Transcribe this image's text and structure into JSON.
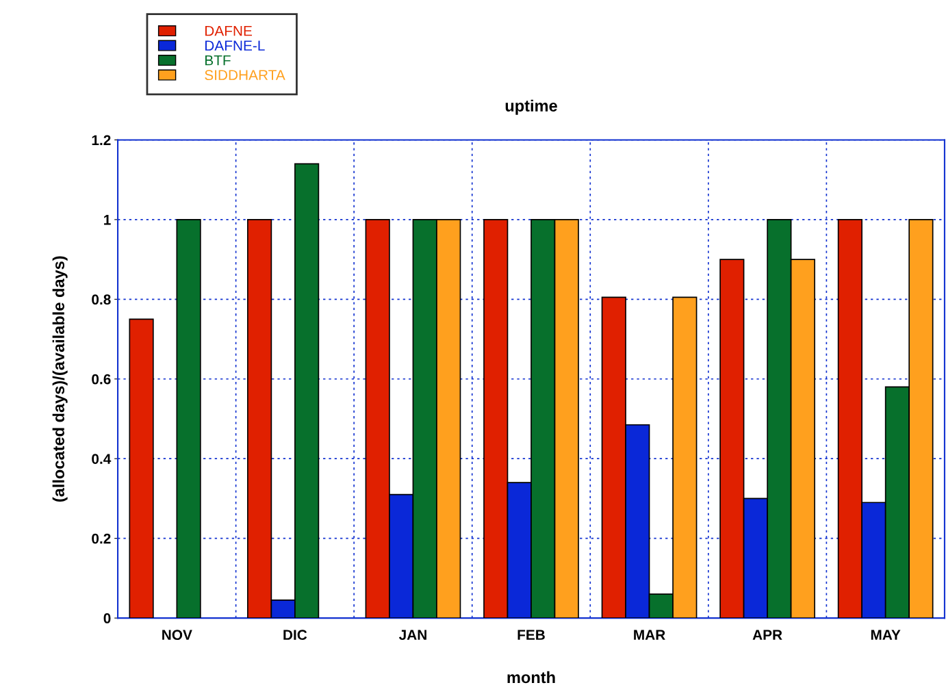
{
  "chart_data": {
    "type": "bar",
    "title": "uptime",
    "xlabel": "month",
    "ylabel": "(allocated days)/(available days)",
    "categories": [
      "NOV",
      "DIC",
      "JAN",
      "FEB",
      "MAR",
      "APR",
      "MAY"
    ],
    "series": [
      {
        "name": "DAFNE",
        "color": "#e02000",
        "values": [
          0.75,
          1,
          1,
          1,
          0.805,
          0.9,
          1
        ]
      },
      {
        "name": "DAFNE-L",
        "color": "#0a28d8",
        "values": [
          null,
          0.045,
          0.31,
          0.34,
          0.485,
          0.3,
          0.29
        ]
      },
      {
        "name": "BTF",
        "color": "#07702c",
        "values": [
          1,
          1.14,
          1,
          1,
          0.06,
          1,
          0.58
        ]
      },
      {
        "name": "SIDDHARTA",
        "color": "#ffa01e",
        "values": [
          null,
          null,
          1,
          1,
          0.805,
          0.9,
          1
        ]
      }
    ],
    "ylim": [
      0,
      1.2
    ],
    "yticks": [
      0,
      0.2,
      0.4,
      0.6,
      0.8,
      1,
      1.2
    ],
    "grid": true,
    "legend": "top left"
  }
}
